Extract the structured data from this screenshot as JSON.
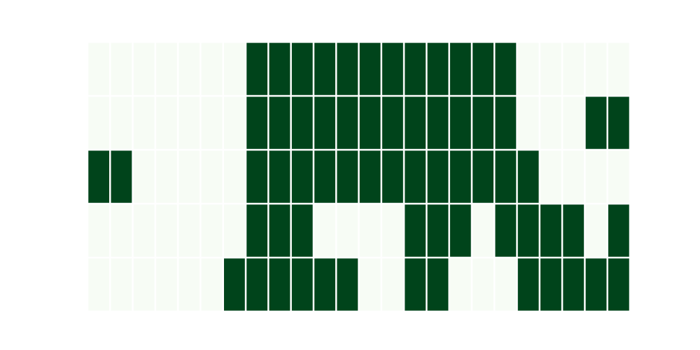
{
  "chart_data": {
    "type": "heatmap",
    "rows": 5,
    "cols": 24,
    "values": [
      [
        0,
        0,
        0,
        0,
        0,
        0,
        0,
        1,
        1,
        1,
        1,
        1,
        1,
        1,
        1,
        1,
        1,
        1,
        1,
        0,
        0,
        0,
        0,
        0
      ],
      [
        0,
        0,
        0,
        0,
        0,
        0,
        0,
        1,
        1,
        1,
        1,
        1,
        1,
        1,
        1,
        1,
        1,
        1,
        1,
        0,
        0,
        0,
        1,
        1
      ],
      [
        1,
        1,
        0,
        0,
        0,
        0,
        0,
        1,
        1,
        1,
        1,
        1,
        1,
        1,
        1,
        1,
        1,
        1,
        1,
        1,
        0,
        0,
        0,
        0
      ],
      [
        0,
        0,
        0,
        0,
        0,
        0,
        0,
        1,
        1,
        1,
        0,
        0,
        0,
        0,
        1,
        1,
        1,
        0,
        1,
        1,
        1,
        1,
        0,
        1
      ],
      [
        0,
        0,
        0,
        0,
        0,
        0,
        1,
        1,
        1,
        1,
        1,
        1,
        0,
        0,
        1,
        1,
        0,
        0,
        0,
        1,
        1,
        1,
        1,
        1
      ]
    ],
    "colors": {
      "low": "#f7fcf5",
      "high": "#00441b",
      "gap": "#ffffff"
    },
    "title": "",
    "xlabel": "",
    "ylabel": "",
    "grid": false,
    "legend": "none"
  }
}
